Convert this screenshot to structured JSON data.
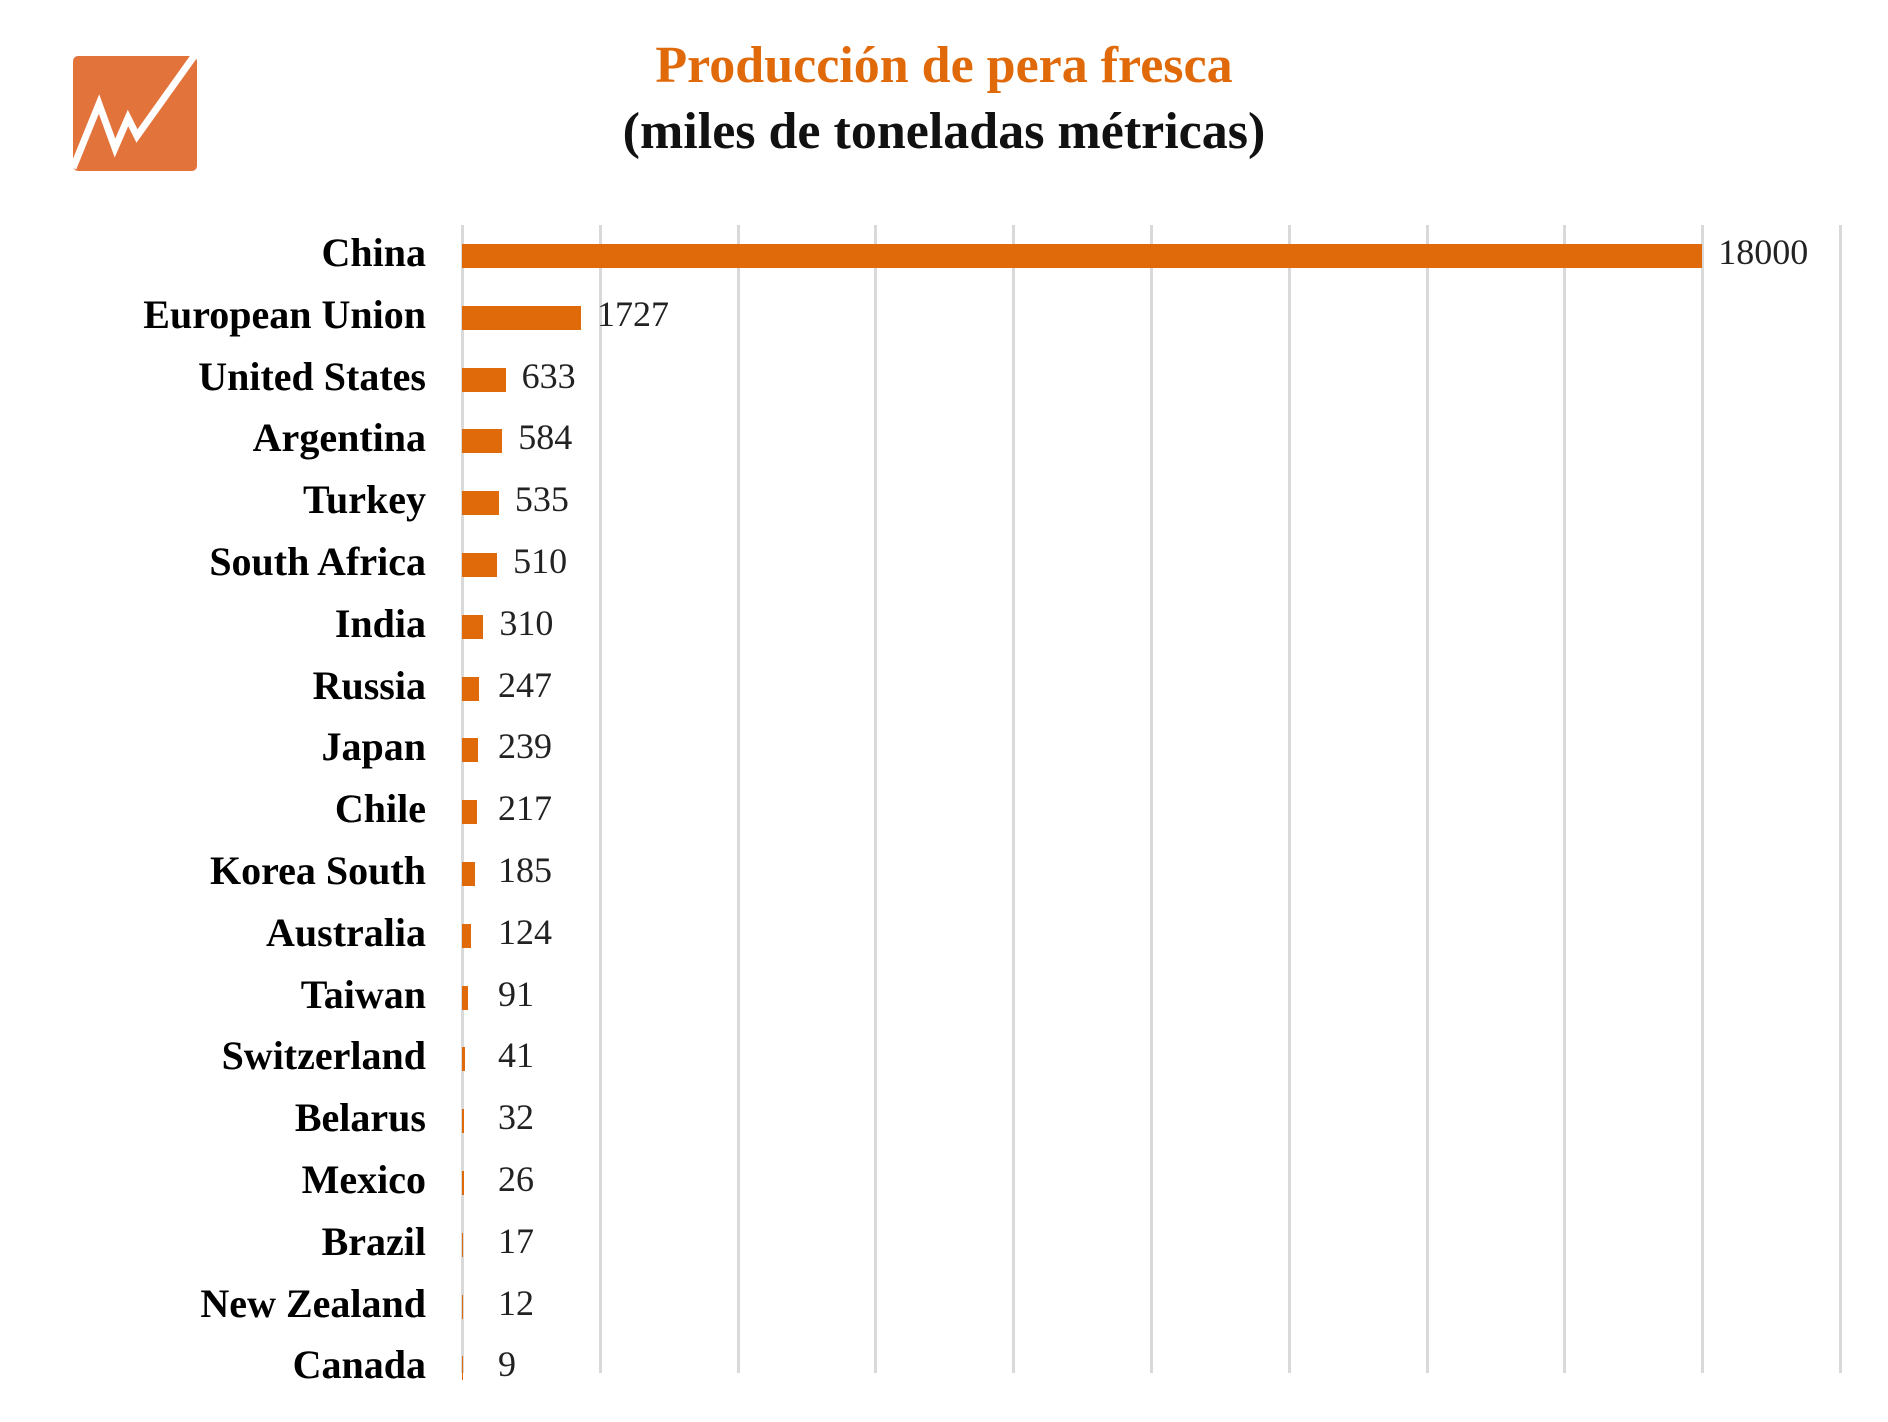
{
  "chart": {
    "title": "Producción de pera fresca",
    "subtitle": "(miles de toneladas métricas)",
    "logo": "trend-chart-icon",
    "accent": "#E06A0A",
    "grid_color": "#D9D9D9"
  },
  "chart_data": {
    "type": "bar",
    "orientation": "horizontal",
    "title": "Producción de pera fresca",
    "subtitle": "(miles de toneladas métricas)",
    "xlabel": "",
    "ylabel": "",
    "xlim": [
      0,
      20000
    ],
    "grid": true,
    "grid_interval": 2000,
    "legend": null,
    "categories": [
      "China",
      "European Union",
      "United States",
      "Argentina",
      "Turkey",
      "South Africa",
      "India",
      "Russia",
      "Japan",
      "Chile",
      "Korea South",
      "Australia",
      "Taiwan",
      "Switzerland",
      "Belarus",
      "Mexico",
      "Brazil",
      "New Zealand",
      "Canada"
    ],
    "values": [
      18000,
      1727,
      633,
      584,
      535,
      510,
      310,
      247,
      239,
      217,
      185,
      124,
      91,
      41,
      32,
      26,
      17,
      12,
      9
    ],
    "labels": [
      "18000",
      "1727",
      "633",
      "584",
      "535",
      "510",
      "310",
      "247",
      "239",
      "217",
      "185",
      "124",
      "91",
      "41",
      "32",
      "26",
      "17",
      "12",
      "9"
    ]
  }
}
